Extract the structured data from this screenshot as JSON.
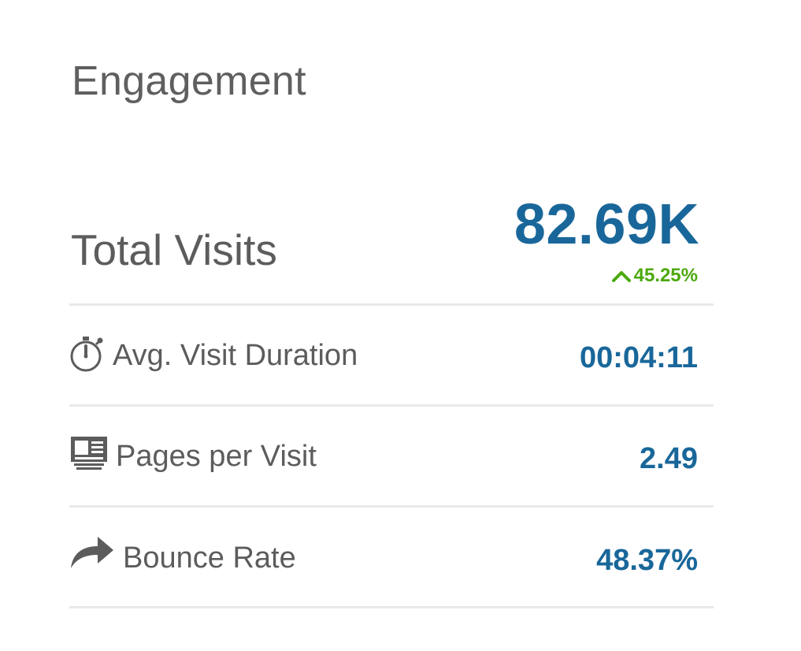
{
  "engagement": {
    "title": "Engagement",
    "total_visits": {
      "label": "Total Visits",
      "value": "82.69K",
      "change": "45.25%",
      "change_direction": "up",
      "change_color": "#4ca90e"
    },
    "metrics": [
      {
        "label": "Avg. Visit Duration",
        "value": "00:04:11",
        "icon": "stopwatch-icon"
      },
      {
        "label": "Pages per Visit",
        "value": "2.49",
        "icon": "pages-icon"
      },
      {
        "label": "Bounce Rate",
        "value": "48.37%",
        "icon": "bounce-arrow-icon"
      }
    ],
    "value_color": "#19679a",
    "label_color": "#5c5c5c"
  }
}
